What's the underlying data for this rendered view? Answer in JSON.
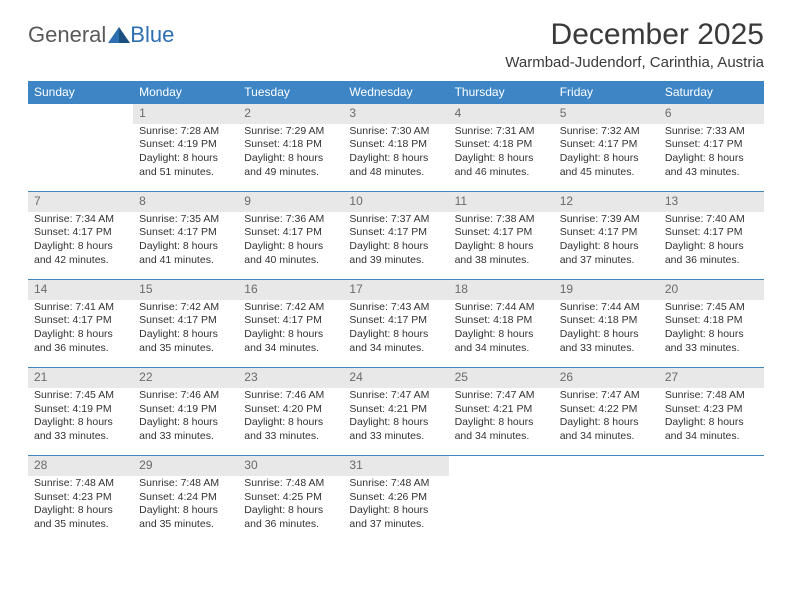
{
  "logo": {
    "general": "General",
    "blue": "Blue"
  },
  "title": "December 2025",
  "location": "Warmbad-Judendorf, Carinthia, Austria",
  "colors": {
    "header_bg": "#3e85c6",
    "header_text": "#ffffff",
    "daynum_bg": "#e8e8e8",
    "daynum_text": "#6a6a6a",
    "row_divider": "#3e85c6",
    "body_text": "#333333",
    "logo_general": "#5a5a5a",
    "logo_blue": "#2d6fb0"
  },
  "day_headers": [
    "Sunday",
    "Monday",
    "Tuesday",
    "Wednesday",
    "Thursday",
    "Friday",
    "Saturday"
  ],
  "weeks": [
    {
      "nums": [
        "",
        "1",
        "2",
        "3",
        "4",
        "5",
        "6"
      ],
      "cells": [
        {
          "sunrise": "",
          "sunset": "",
          "daylightA": "",
          "daylightB": ""
        },
        {
          "sunrise": "Sunrise: 7:28 AM",
          "sunset": "Sunset: 4:19 PM",
          "daylightA": "Daylight: 8 hours",
          "daylightB": "and 51 minutes."
        },
        {
          "sunrise": "Sunrise: 7:29 AM",
          "sunset": "Sunset: 4:18 PM",
          "daylightA": "Daylight: 8 hours",
          "daylightB": "and 49 minutes."
        },
        {
          "sunrise": "Sunrise: 7:30 AM",
          "sunset": "Sunset: 4:18 PM",
          "daylightA": "Daylight: 8 hours",
          "daylightB": "and 48 minutes."
        },
        {
          "sunrise": "Sunrise: 7:31 AM",
          "sunset": "Sunset: 4:18 PM",
          "daylightA": "Daylight: 8 hours",
          "daylightB": "and 46 minutes."
        },
        {
          "sunrise": "Sunrise: 7:32 AM",
          "sunset": "Sunset: 4:17 PM",
          "daylightA": "Daylight: 8 hours",
          "daylightB": "and 45 minutes."
        },
        {
          "sunrise": "Sunrise: 7:33 AM",
          "sunset": "Sunset: 4:17 PM",
          "daylightA": "Daylight: 8 hours",
          "daylightB": "and 43 minutes."
        }
      ]
    },
    {
      "nums": [
        "7",
        "8",
        "9",
        "10",
        "11",
        "12",
        "13"
      ],
      "cells": [
        {
          "sunrise": "Sunrise: 7:34 AM",
          "sunset": "Sunset: 4:17 PM",
          "daylightA": "Daylight: 8 hours",
          "daylightB": "and 42 minutes."
        },
        {
          "sunrise": "Sunrise: 7:35 AM",
          "sunset": "Sunset: 4:17 PM",
          "daylightA": "Daylight: 8 hours",
          "daylightB": "and 41 minutes."
        },
        {
          "sunrise": "Sunrise: 7:36 AM",
          "sunset": "Sunset: 4:17 PM",
          "daylightA": "Daylight: 8 hours",
          "daylightB": "and 40 minutes."
        },
        {
          "sunrise": "Sunrise: 7:37 AM",
          "sunset": "Sunset: 4:17 PM",
          "daylightA": "Daylight: 8 hours",
          "daylightB": "and 39 minutes."
        },
        {
          "sunrise": "Sunrise: 7:38 AM",
          "sunset": "Sunset: 4:17 PM",
          "daylightA": "Daylight: 8 hours",
          "daylightB": "and 38 minutes."
        },
        {
          "sunrise": "Sunrise: 7:39 AM",
          "sunset": "Sunset: 4:17 PM",
          "daylightA": "Daylight: 8 hours",
          "daylightB": "and 37 minutes."
        },
        {
          "sunrise": "Sunrise: 7:40 AM",
          "sunset": "Sunset: 4:17 PM",
          "daylightA": "Daylight: 8 hours",
          "daylightB": "and 36 minutes."
        }
      ]
    },
    {
      "nums": [
        "14",
        "15",
        "16",
        "17",
        "18",
        "19",
        "20"
      ],
      "cells": [
        {
          "sunrise": "Sunrise: 7:41 AM",
          "sunset": "Sunset: 4:17 PM",
          "daylightA": "Daylight: 8 hours",
          "daylightB": "and 36 minutes."
        },
        {
          "sunrise": "Sunrise: 7:42 AM",
          "sunset": "Sunset: 4:17 PM",
          "daylightA": "Daylight: 8 hours",
          "daylightB": "and 35 minutes."
        },
        {
          "sunrise": "Sunrise: 7:42 AM",
          "sunset": "Sunset: 4:17 PM",
          "daylightA": "Daylight: 8 hours",
          "daylightB": "and 34 minutes."
        },
        {
          "sunrise": "Sunrise: 7:43 AM",
          "sunset": "Sunset: 4:17 PM",
          "daylightA": "Daylight: 8 hours",
          "daylightB": "and 34 minutes."
        },
        {
          "sunrise": "Sunrise: 7:44 AM",
          "sunset": "Sunset: 4:18 PM",
          "daylightA": "Daylight: 8 hours",
          "daylightB": "and 34 minutes."
        },
        {
          "sunrise": "Sunrise: 7:44 AM",
          "sunset": "Sunset: 4:18 PM",
          "daylightA": "Daylight: 8 hours",
          "daylightB": "and 33 minutes."
        },
        {
          "sunrise": "Sunrise: 7:45 AM",
          "sunset": "Sunset: 4:18 PM",
          "daylightA": "Daylight: 8 hours",
          "daylightB": "and 33 minutes."
        }
      ]
    },
    {
      "nums": [
        "21",
        "22",
        "23",
        "24",
        "25",
        "26",
        "27"
      ],
      "cells": [
        {
          "sunrise": "Sunrise: 7:45 AM",
          "sunset": "Sunset: 4:19 PM",
          "daylightA": "Daylight: 8 hours",
          "daylightB": "and 33 minutes."
        },
        {
          "sunrise": "Sunrise: 7:46 AM",
          "sunset": "Sunset: 4:19 PM",
          "daylightA": "Daylight: 8 hours",
          "daylightB": "and 33 minutes."
        },
        {
          "sunrise": "Sunrise: 7:46 AM",
          "sunset": "Sunset: 4:20 PM",
          "daylightA": "Daylight: 8 hours",
          "daylightB": "and 33 minutes."
        },
        {
          "sunrise": "Sunrise: 7:47 AM",
          "sunset": "Sunset: 4:21 PM",
          "daylightA": "Daylight: 8 hours",
          "daylightB": "and 33 minutes."
        },
        {
          "sunrise": "Sunrise: 7:47 AM",
          "sunset": "Sunset: 4:21 PM",
          "daylightA": "Daylight: 8 hours",
          "daylightB": "and 34 minutes."
        },
        {
          "sunrise": "Sunrise: 7:47 AM",
          "sunset": "Sunset: 4:22 PM",
          "daylightA": "Daylight: 8 hours",
          "daylightB": "and 34 minutes."
        },
        {
          "sunrise": "Sunrise: 7:48 AM",
          "sunset": "Sunset: 4:23 PM",
          "daylightA": "Daylight: 8 hours",
          "daylightB": "and 34 minutes."
        }
      ]
    },
    {
      "nums": [
        "28",
        "29",
        "30",
        "31",
        "",
        "",
        ""
      ],
      "cells": [
        {
          "sunrise": "Sunrise: 7:48 AM",
          "sunset": "Sunset: 4:23 PM",
          "daylightA": "Daylight: 8 hours",
          "daylightB": "and 35 minutes."
        },
        {
          "sunrise": "Sunrise: 7:48 AM",
          "sunset": "Sunset: 4:24 PM",
          "daylightA": "Daylight: 8 hours",
          "daylightB": "and 35 minutes."
        },
        {
          "sunrise": "Sunrise: 7:48 AM",
          "sunset": "Sunset: 4:25 PM",
          "daylightA": "Daylight: 8 hours",
          "daylightB": "and 36 minutes."
        },
        {
          "sunrise": "Sunrise: 7:48 AM",
          "sunset": "Sunset: 4:26 PM",
          "daylightA": "Daylight: 8 hours",
          "daylightB": "and 37 minutes."
        },
        {
          "sunrise": "",
          "sunset": "",
          "daylightA": "",
          "daylightB": ""
        },
        {
          "sunrise": "",
          "sunset": "",
          "daylightA": "",
          "daylightB": ""
        },
        {
          "sunrise": "",
          "sunset": "",
          "daylightA": "",
          "daylightB": ""
        }
      ]
    }
  ]
}
